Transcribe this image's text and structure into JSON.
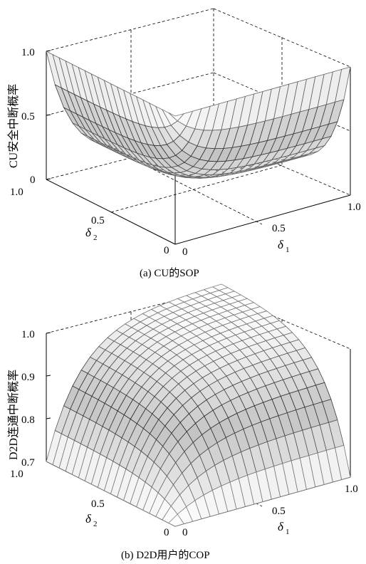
{
  "chart_data": [
    {
      "id": "a",
      "type": "surface",
      "caption": "(a) CU的SOP",
      "zlabel": "CU安全中断概率",
      "xlabel": "δ1",
      "ylabel": "δ2",
      "x_ticks": [
        "0",
        "0.5",
        "1.0"
      ],
      "y_ticks": [
        "0",
        "0.5",
        "1.0"
      ],
      "z_ticks": [
        "0",
        "0.5",
        "1.0"
      ],
      "x_range": [
        0,
        1
      ],
      "y_range": [
        0,
        1
      ],
      "zlim": [
        0,
        1
      ],
      "grid": "off",
      "box": "dashed",
      "surface_shape": "valley: high near δ1=0 or δ2=0 edges, minimum near the center diagonal",
      "grid_size": [
        21,
        21
      ],
      "sample_values": {
        "x": [
          0,
          0.25,
          0.5,
          0.75,
          1
        ],
        "y": [
          0,
          0.25,
          0.5,
          0.75,
          1
        ],
        "z": [
          [
            1.0,
            0.97,
            0.93,
            0.92,
            0.9
          ],
          [
            0.97,
            0.32,
            0.2,
            0.17,
            0.16
          ],
          [
            0.93,
            0.2,
            0.1,
            0.08,
            0.07
          ],
          [
            0.92,
            0.17,
            0.08,
            0.06,
            0.05
          ],
          [
            0.9,
            0.16,
            0.07,
            0.05,
            0.85
          ]
        ]
      }
    },
    {
      "id": "b",
      "type": "surface",
      "caption": "(b) D2D用户的COP",
      "zlabel": "D2D连通中断概率",
      "xlabel": "δ1",
      "ylabel": "δ2",
      "x_ticks": [
        "0",
        "0.5",
        "1.0"
      ],
      "y_ticks": [
        "0",
        "0.5",
        "1.0"
      ],
      "z_ticks": [
        "0.7",
        "0.8",
        "0.9",
        "1.0"
      ],
      "x_range": [
        0,
        1
      ],
      "y_range": [
        0,
        1
      ],
      "zlim": [
        0.7,
        1.0
      ],
      "grid": "off",
      "box": "dashed",
      "surface_shape": "dome: lowest near δ1=0 and δ2=0, rising to about 1.0 at δ1=1, δ2=1",
      "grid_size": [
        21,
        21
      ],
      "sample_values": {
        "x": [
          0,
          0.25,
          0.5,
          0.75,
          1
        ],
        "y": [
          0,
          0.25,
          0.5,
          0.75,
          1
        ],
        "z": [
          [
            0.7,
            0.74,
            0.77,
            0.78,
            0.79
          ],
          [
            0.74,
            0.87,
            0.91,
            0.92,
            0.93
          ],
          [
            0.77,
            0.91,
            0.96,
            0.97,
            0.98
          ],
          [
            0.78,
            0.92,
            0.97,
            0.99,
            0.995
          ],
          [
            0.79,
            0.93,
            0.98,
            0.995,
            1.0
          ]
        ]
      }
    }
  ]
}
